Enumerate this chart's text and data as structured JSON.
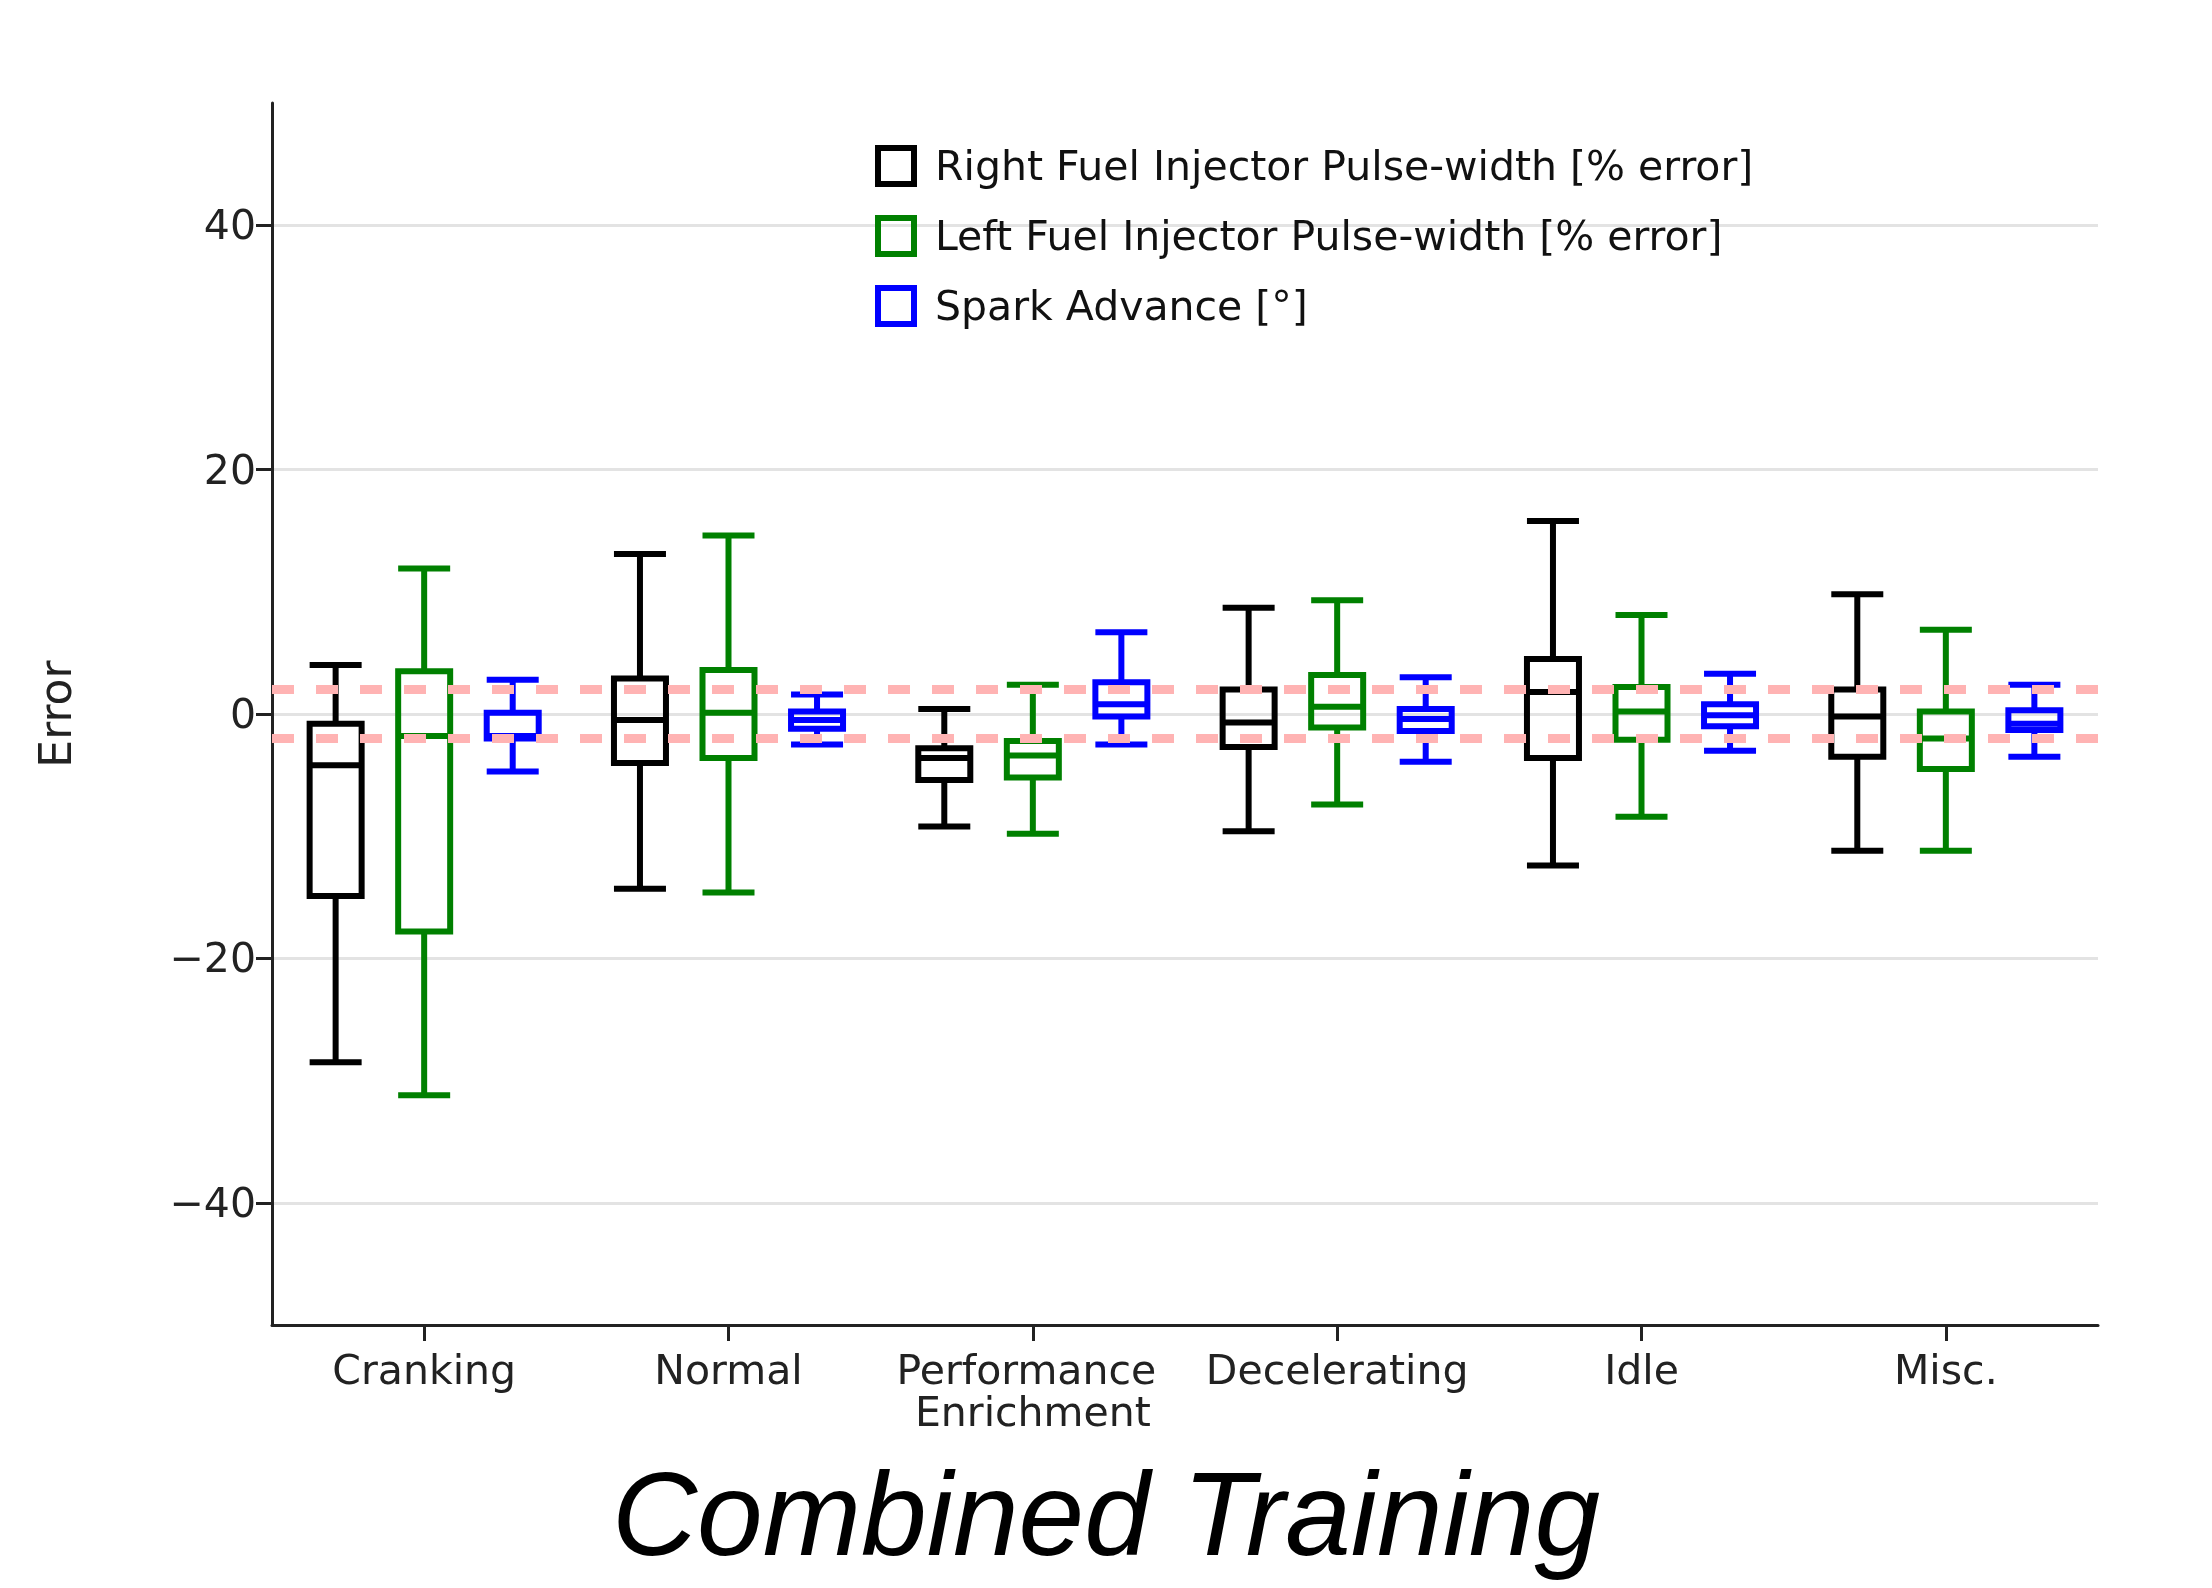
{
  "chart_data": {
    "type": "box",
    "title": "Combined Training",
    "ylabel": "Error",
    "categories": [
      "Cranking",
      "Normal",
      "Performance Enrichment",
      "Decelerating",
      "Idle",
      "Misc."
    ],
    "series": [
      {
        "name": "Right Fuel Injector Pulse-width [% error]",
        "color": "#000000",
        "boxes": [
          {
            "low": -28.5,
            "q1": -14.9,
            "median": -4.2,
            "q3": -0.8,
            "high": 4.0
          },
          {
            "low": -14.3,
            "q1": -4.0,
            "median": -0.5,
            "q3": 2.9,
            "high": 13.1
          },
          {
            "low": -9.2,
            "q1": -5.4,
            "median": -3.6,
            "q3": -2.8,
            "high": 0.4
          },
          {
            "low": -9.6,
            "q1": -2.7,
            "median": -0.7,
            "q3": 2.0,
            "high": 8.7
          },
          {
            "low": -12.4,
            "q1": -3.6,
            "median": 1.8,
            "q3": 4.5,
            "high": 15.8
          },
          {
            "low": -11.2,
            "q1": -3.5,
            "median": -0.2,
            "q3": 2.0,
            "high": 9.8
          }
        ]
      },
      {
        "name": "Left Fuel Injector Pulse-width [% error]",
        "color": "#008000",
        "boxes": [
          {
            "low": -31.2,
            "q1": -17.8,
            "median": -1.8,
            "q3": 3.5,
            "high": 11.9
          },
          {
            "low": -14.6,
            "q1": -3.6,
            "median": 0.1,
            "q3": 3.6,
            "high": 14.6
          },
          {
            "low": -9.8,
            "q1": -5.2,
            "median": -3.4,
            "q3": -2.2,
            "high": 2.4
          },
          {
            "low": -7.4,
            "q1": -1.1,
            "median": 0.6,
            "q3": 3.2,
            "high": 9.3
          },
          {
            "low": -8.4,
            "q1": -2.1,
            "median": 0.2,
            "q3": 2.2,
            "high": 8.1
          },
          {
            "low": -11.2,
            "q1": -4.5,
            "median": -2.0,
            "q3": 0.2,
            "high": 6.9
          }
        ]
      },
      {
        "name": "Spark Advance [°]",
        "color": "#0000ff",
        "boxes": [
          {
            "low": -4.7,
            "q1": -2.0,
            "median": -1.8,
            "q3": 0.1,
            "high": 2.8
          },
          {
            "low": -2.5,
            "q1": -1.2,
            "median": -0.5,
            "q3": 0.2,
            "high": 1.6
          },
          {
            "low": -2.5,
            "q1": -0.2,
            "median": 0.8,
            "q3": 2.6,
            "high": 6.7
          },
          {
            "low": -3.9,
            "q1": -1.4,
            "median": -0.4,
            "q3": 0.4,
            "high": 3.0
          },
          {
            "low": -3.0,
            "q1": -1.0,
            "median": -0.1,
            "q3": 0.8,
            "high": 3.3
          },
          {
            "low": -3.5,
            "q1": -1.3,
            "median": -0.8,
            "q3": 0.3,
            "high": 2.4
          }
        ]
      }
    ],
    "ylim": [
      -50,
      50
    ],
    "yticks": [
      {
        "value": -40,
        "label": "−40"
      },
      {
        "value": -20,
        "label": "−20"
      },
      0,
      20,
      40
    ],
    "ref_lines": [
      {
        "axis": "y",
        "value": 2,
        "color": "#ffb3b3",
        "line_style": "dashed"
      },
      {
        "axis": "y",
        "value": -2,
        "color": "#ffb3b3",
        "line_style": "dashed"
      }
    ],
    "grid": "y",
    "legend": "top right"
  }
}
